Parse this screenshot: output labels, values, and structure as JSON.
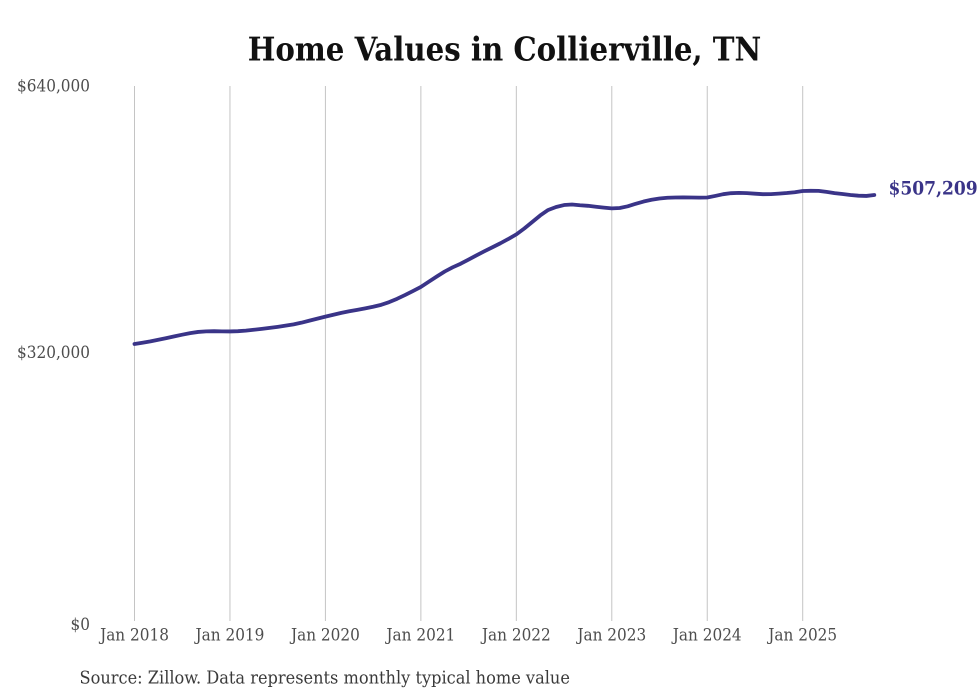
{
  "chart": {
    "title": "Home Values in Collierville, TN",
    "source_note": "Source: Zillow. Data represents monthly typical home value",
    "end_label": "$507,209"
  },
  "colors": {
    "line": "#3a3488",
    "end_label": "#3a3488",
    "gridline": "#c4c4c4",
    "axis_label": "#4d4d4d",
    "title": "#111111",
    "source": "#3a3a3a",
    "background": "#ffffff"
  },
  "chart_data": {
    "type": "line",
    "title": "Home Values in Collierville, TN",
    "ylabel": "",
    "xlabel": "",
    "ylim": [
      0,
      640000
    ],
    "y_ticks": [
      {
        "value": 0,
        "label": "$0"
      },
      {
        "value": 320000,
        "label": "$320,000"
      },
      {
        "value": 640000,
        "label": "$640,000"
      }
    ],
    "x_ticks": [
      {
        "month_index": 0,
        "label": "Jan 2018"
      },
      {
        "month_index": 12,
        "label": "Jan 2019"
      },
      {
        "month_index": 24,
        "label": "Jan 2020"
      },
      {
        "month_index": 36,
        "label": "Jan 2021"
      },
      {
        "month_index": 48,
        "label": "Jan 2022"
      },
      {
        "month_index": 60,
        "label": "Jan 2023"
      },
      {
        "month_index": 72,
        "label": "Jan 2024"
      },
      {
        "month_index": 84,
        "label": "Jan 2025"
      }
    ],
    "grid": "vertical",
    "legend": "none",
    "start_month": "2018-01",
    "end_month": "2025-10",
    "last_value": 507209,
    "values": [
      329000,
      330500,
      332100,
      334000,
      336000,
      338100,
      340100,
      342000,
      343400,
      344100,
      344300,
      344100,
      344000,
      344300,
      345000,
      346000,
      347100,
      348300,
      349500,
      350900,
      352500,
      354500,
      356900,
      359300,
      361700,
      364000,
      366200,
      368100,
      369800,
      371600,
      373500,
      375800,
      379000,
      383000,
      387500,
      392300,
      397200,
      403500,
      409700,
      415700,
      420700,
      425000,
      430000,
      435100,
      440000,
      444700,
      449500,
      454600,
      460100,
      467100,
      474900,
      482700,
      489300,
      492900,
      495200,
      495800,
      494900,
      494300,
      493200,
      492100,
      491200,
      491700,
      493700,
      496700,
      499400,
      501500,
      503000,
      503900,
      504200,
      504400,
      504200,
      504100,
      504200,
      506100,
      508200,
      509400,
      509800,
      509500,
      508800,
      508200,
      508300,
      508900,
      509600,
      510500,
      512000,
      512240,
      512120,
      510900,
      509500,
      508400,
      507200,
      506400,
      506100,
      507209
    ]
  }
}
